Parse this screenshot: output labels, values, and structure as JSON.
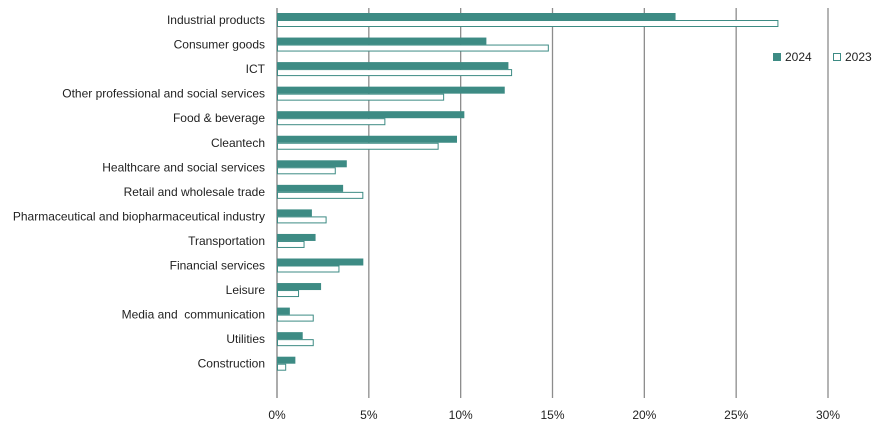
{
  "chart_data": {
    "type": "bar",
    "orientation": "horizontal",
    "title": "",
    "xlabel": "",
    "ylabel": "",
    "categories": [
      "Industrial products",
      "Consumer goods",
      "ICT",
      "Other professional and social services",
      "Food & beverage",
      "Cleantech",
      "Healthcare and social services",
      "Retail and wholesale trade",
      "Pharmaceutical and biopharmaceutical industry",
      "Transportation",
      "Financial services",
      "Leisure",
      "Media and  communication",
      "Utilities",
      "Construction"
    ],
    "series": [
      {
        "name": "2024",
        "color": "#3d8b84",
        "style": "filled",
        "values": [
          21.7,
          11.4,
          12.6,
          12.4,
          10.2,
          9.8,
          3.8,
          3.6,
          1.9,
          2.1,
          4.7,
          2.4,
          0.7,
          1.4,
          1.0
        ]
      },
      {
        "name": "2023",
        "color": "#3d8b84",
        "style": "outline",
        "values": [
          27.3,
          14.8,
          12.8,
          9.1,
          5.9,
          8.8,
          3.2,
          4.7,
          2.7,
          1.5,
          3.4,
          1.2,
          2.0,
          2.0,
          0.5
        ]
      }
    ],
    "xlim": [
      0,
      30
    ],
    "x_ticks": [
      "0%",
      "5%",
      "10%",
      "15%",
      "20%",
      "25%",
      "30%"
    ],
    "grid": true,
    "legend_position": "top-right"
  }
}
